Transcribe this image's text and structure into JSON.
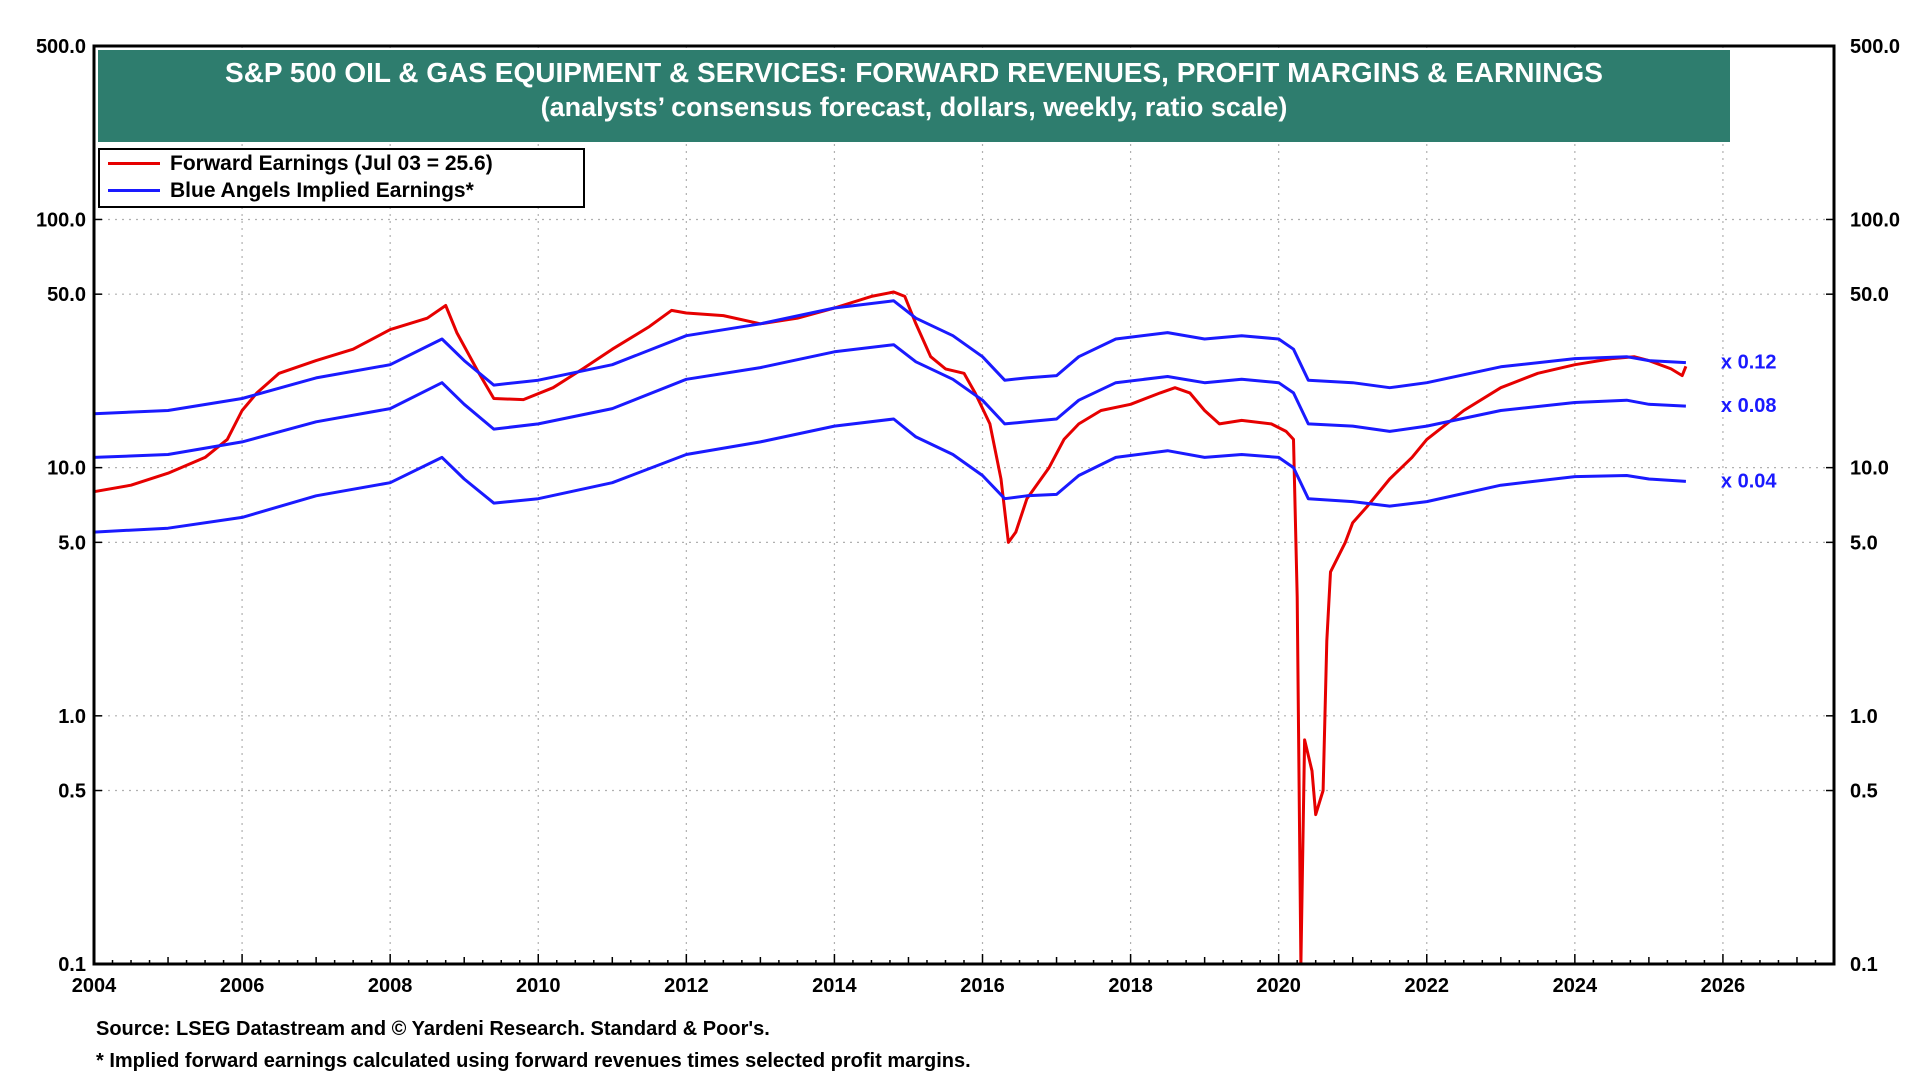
{
  "chart_data": {
    "type": "line",
    "title": "S&P 500 OIL & GAS EQUIPMENT & SERVICES: FORWARD REVENUES, PROFIT MARGINS & EARNINGS",
    "subtitle": "(analysts’ consensus forecast, dollars, weekly, ratio scale)",
    "yscale": "log",
    "ylim": [
      0.1,
      500
    ],
    "xlim": [
      2004,
      2027.5
    ],
    "yticks": [
      "500.0",
      "100.0",
      "50.0",
      "10.0",
      "5.0",
      "1.0",
      "0.5",
      "0.1"
    ],
    "ytick_values": [
      500,
      100,
      50,
      10,
      5,
      1,
      0.5,
      0.1
    ],
    "xticks": [
      "2004",
      "2006",
      "2008",
      "2010",
      "2012",
      "2014",
      "2016",
      "2018",
      "2020",
      "2022",
      "2024",
      "2026"
    ],
    "xtick_values": [
      2004,
      2006,
      2008,
      2010,
      2012,
      2014,
      2016,
      2018,
      2020,
      2022,
      2024,
      2026
    ],
    "grid": true,
    "legend_position": "top-left",
    "legend": [
      {
        "label": "Forward Earnings (Jul 03 = 25.6)",
        "color": "#e60000"
      },
      {
        "label": "Blue Angels Implied Earnings*",
        "color": "#1a1aff"
      }
    ],
    "series": [
      {
        "name": "Forward Earnings (Jul 03 = 25.6)",
        "color": "#e60000",
        "points": [
          [
            2004.0,
            8.0
          ],
          [
            2004.5,
            8.5
          ],
          [
            2005.0,
            9.5
          ],
          [
            2005.5,
            11.0
          ],
          [
            2005.8,
            13.0
          ],
          [
            2006.0,
            17.0
          ],
          [
            2006.2,
            20.0
          ],
          [
            2006.5,
            24.0
          ],
          [
            2007.0,
            27.0
          ],
          [
            2007.5,
            30.0
          ],
          [
            2008.0,
            36.0
          ],
          [
            2008.5,
            40.0
          ],
          [
            2008.75,
            45.0
          ],
          [
            2008.9,
            35.0
          ],
          [
            2009.2,
            24.0
          ],
          [
            2009.4,
            19.0
          ],
          [
            2009.8,
            18.8
          ],
          [
            2010.2,
            21.0
          ],
          [
            2010.6,
            25.0
          ],
          [
            2011.0,
            30.0
          ],
          [
            2011.5,
            37.0
          ],
          [
            2011.8,
            43.0
          ],
          [
            2012.0,
            42.0
          ],
          [
            2012.5,
            41.0
          ],
          [
            2013.0,
            38.0
          ],
          [
            2013.5,
            40.0
          ],
          [
            2014.0,
            44.0
          ],
          [
            2014.5,
            49.0
          ],
          [
            2014.8,
            51.0
          ],
          [
            2014.95,
            49.0
          ],
          [
            2015.1,
            38.0
          ],
          [
            2015.3,
            28.0
          ],
          [
            2015.5,
            25.0
          ],
          [
            2015.75,
            24.0
          ],
          [
            2015.9,
            20.0
          ],
          [
            2016.1,
            15.0
          ],
          [
            2016.25,
            9.0
          ],
          [
            2016.35,
            5.0
          ],
          [
            2016.45,
            5.5
          ],
          [
            2016.6,
            7.5
          ],
          [
            2016.9,
            10.0
          ],
          [
            2017.1,
            13.0
          ],
          [
            2017.3,
            15.0
          ],
          [
            2017.6,
            17.0
          ],
          [
            2018.0,
            18.0
          ],
          [
            2018.4,
            20.0
          ],
          [
            2018.6,
            21.0
          ],
          [
            2018.8,
            20.0
          ],
          [
            2019.0,
            17.0
          ],
          [
            2019.2,
            15.0
          ],
          [
            2019.5,
            15.5
          ],
          [
            2019.9,
            15.0
          ],
          [
            2020.1,
            14.0
          ],
          [
            2020.2,
            13.0
          ],
          [
            2020.25,
            3.0
          ],
          [
            2020.3,
            0.1
          ],
          [
            2020.35,
            0.8
          ],
          [
            2020.45,
            0.6
          ],
          [
            2020.5,
            0.4
          ],
          [
            2020.6,
            0.5
          ],
          [
            2020.65,
            2.0
          ],
          [
            2020.7,
            3.8
          ],
          [
            2020.9,
            5.0
          ],
          [
            2021.0,
            6.0
          ],
          [
            2021.2,
            7.0
          ],
          [
            2021.5,
            9.0
          ],
          [
            2021.8,
            11.0
          ],
          [
            2022.0,
            13.0
          ],
          [
            2022.5,
            17.0
          ],
          [
            2023.0,
            21.0
          ],
          [
            2023.5,
            24.0
          ],
          [
            2024.0,
            26.0
          ],
          [
            2024.5,
            27.5
          ],
          [
            2024.8,
            28.0
          ],
          [
            2025.0,
            27.0
          ],
          [
            2025.3,
            25.0
          ],
          [
            2025.45,
            23.5
          ],
          [
            2025.5,
            25.6
          ]
        ]
      },
      {
        "name": "Blue Angels Implied Earnings* x 0.12",
        "color": "#1a1aff",
        "points": [
          [
            2004.0,
            16.5
          ],
          [
            2005.0,
            17.0
          ],
          [
            2006.0,
            19.0
          ],
          [
            2007.0,
            23.0
          ],
          [
            2008.0,
            26.0
          ],
          [
            2008.7,
            33.0
          ],
          [
            2009.0,
            27.0
          ],
          [
            2009.4,
            21.5
          ],
          [
            2010.0,
            22.5
          ],
          [
            2011.0,
            26.0
          ],
          [
            2012.0,
            34.0
          ],
          [
            2013.0,
            38.0
          ],
          [
            2014.0,
            44.0
          ],
          [
            2014.8,
            47.0
          ],
          [
            2015.1,
            40.0
          ],
          [
            2015.6,
            34.0
          ],
          [
            2016.0,
            28.0
          ],
          [
            2016.3,
            22.5
          ],
          [
            2016.6,
            23.0
          ],
          [
            2017.0,
            23.5
          ],
          [
            2017.3,
            28.0
          ],
          [
            2017.8,
            33.0
          ],
          [
            2018.5,
            35.0
          ],
          [
            2019.0,
            33.0
          ],
          [
            2019.5,
            34.0
          ],
          [
            2020.0,
            33.0
          ],
          [
            2020.2,
            30.0
          ],
          [
            2020.4,
            22.5
          ],
          [
            2021.0,
            22.0
          ],
          [
            2021.5,
            21.0
          ],
          [
            2022.0,
            22.0
          ],
          [
            2023.0,
            25.5
          ],
          [
            2024.0,
            27.5
          ],
          [
            2024.7,
            28.0
          ],
          [
            2025.0,
            27.0
          ],
          [
            2025.5,
            26.5
          ]
        ]
      },
      {
        "name": "Blue Angels Implied Earnings* x 0.08",
        "color": "#1a1aff",
        "points": [
          [
            2004.0,
            11.0
          ],
          [
            2005.0,
            11.3
          ],
          [
            2006.0,
            12.7
          ],
          [
            2007.0,
            15.3
          ],
          [
            2008.0,
            17.3
          ],
          [
            2008.7,
            22.0
          ],
          [
            2009.0,
            18.0
          ],
          [
            2009.4,
            14.3
          ],
          [
            2010.0,
            15.0
          ],
          [
            2011.0,
            17.3
          ],
          [
            2012.0,
            22.7
          ],
          [
            2013.0,
            25.3
          ],
          [
            2014.0,
            29.3
          ],
          [
            2014.8,
            31.3
          ],
          [
            2015.1,
            26.7
          ],
          [
            2015.6,
            22.7
          ],
          [
            2016.0,
            18.7
          ],
          [
            2016.3,
            15.0
          ],
          [
            2016.6,
            15.3
          ],
          [
            2017.0,
            15.7
          ],
          [
            2017.3,
            18.7
          ],
          [
            2017.8,
            22.0
          ],
          [
            2018.5,
            23.3
          ],
          [
            2019.0,
            22.0
          ],
          [
            2019.5,
            22.7
          ],
          [
            2020.0,
            22.0
          ],
          [
            2020.2,
            20.0
          ],
          [
            2020.4,
            15.0
          ],
          [
            2021.0,
            14.7
          ],
          [
            2021.5,
            14.0
          ],
          [
            2022.0,
            14.7
          ],
          [
            2023.0,
            17.0
          ],
          [
            2024.0,
            18.3
          ],
          [
            2024.7,
            18.7
          ],
          [
            2025.0,
            18.0
          ],
          [
            2025.5,
            17.7
          ]
        ]
      },
      {
        "name": "Blue Angels Implied Earnings* x 0.04",
        "color": "#1a1aff",
        "points": [
          [
            2004.0,
            5.5
          ],
          [
            2005.0,
            5.7
          ],
          [
            2006.0,
            6.3
          ],
          [
            2007.0,
            7.7
          ],
          [
            2008.0,
            8.7
          ],
          [
            2008.7,
            11.0
          ],
          [
            2009.0,
            9.0
          ],
          [
            2009.4,
            7.2
          ],
          [
            2010.0,
            7.5
          ],
          [
            2011.0,
            8.7
          ],
          [
            2012.0,
            11.3
          ],
          [
            2013.0,
            12.7
          ],
          [
            2014.0,
            14.7
          ],
          [
            2014.8,
            15.7
          ],
          [
            2015.1,
            13.3
          ],
          [
            2015.6,
            11.3
          ],
          [
            2016.0,
            9.3
          ],
          [
            2016.3,
            7.5
          ],
          [
            2016.6,
            7.7
          ],
          [
            2017.0,
            7.8
          ],
          [
            2017.3,
            9.3
          ],
          [
            2017.8,
            11.0
          ],
          [
            2018.5,
            11.7
          ],
          [
            2019.0,
            11.0
          ],
          [
            2019.5,
            11.3
          ],
          [
            2020.0,
            11.0
          ],
          [
            2020.2,
            10.0
          ],
          [
            2020.4,
            7.5
          ],
          [
            2021.0,
            7.3
          ],
          [
            2021.5,
            7.0
          ],
          [
            2022.0,
            7.3
          ],
          [
            2023.0,
            8.5
          ],
          [
            2024.0,
            9.2
          ],
          [
            2024.7,
            9.3
          ],
          [
            2025.0,
            9.0
          ],
          [
            2025.5,
            8.8
          ]
        ]
      }
    ],
    "annotations": [
      {
        "text": "x 0.12",
        "x": 2025.5,
        "y": 26.5
      },
      {
        "text": "x 0.08",
        "x": 2025.5,
        "y": 17.7
      },
      {
        "text": "x 0.04",
        "x": 2025.5,
        "y": 8.8
      }
    ]
  },
  "footnotes": {
    "source": "Source: LSEG Datastream and © Yardeni Research. Standard & Poor's.",
    "note": "* Implied forward earnings calculated using forward revenues times selected profit margins."
  },
  "colors": {
    "title_bg": "#2e7d6e",
    "forward_earnings": "#e60000",
    "implied_earnings": "#1a1aff"
  }
}
